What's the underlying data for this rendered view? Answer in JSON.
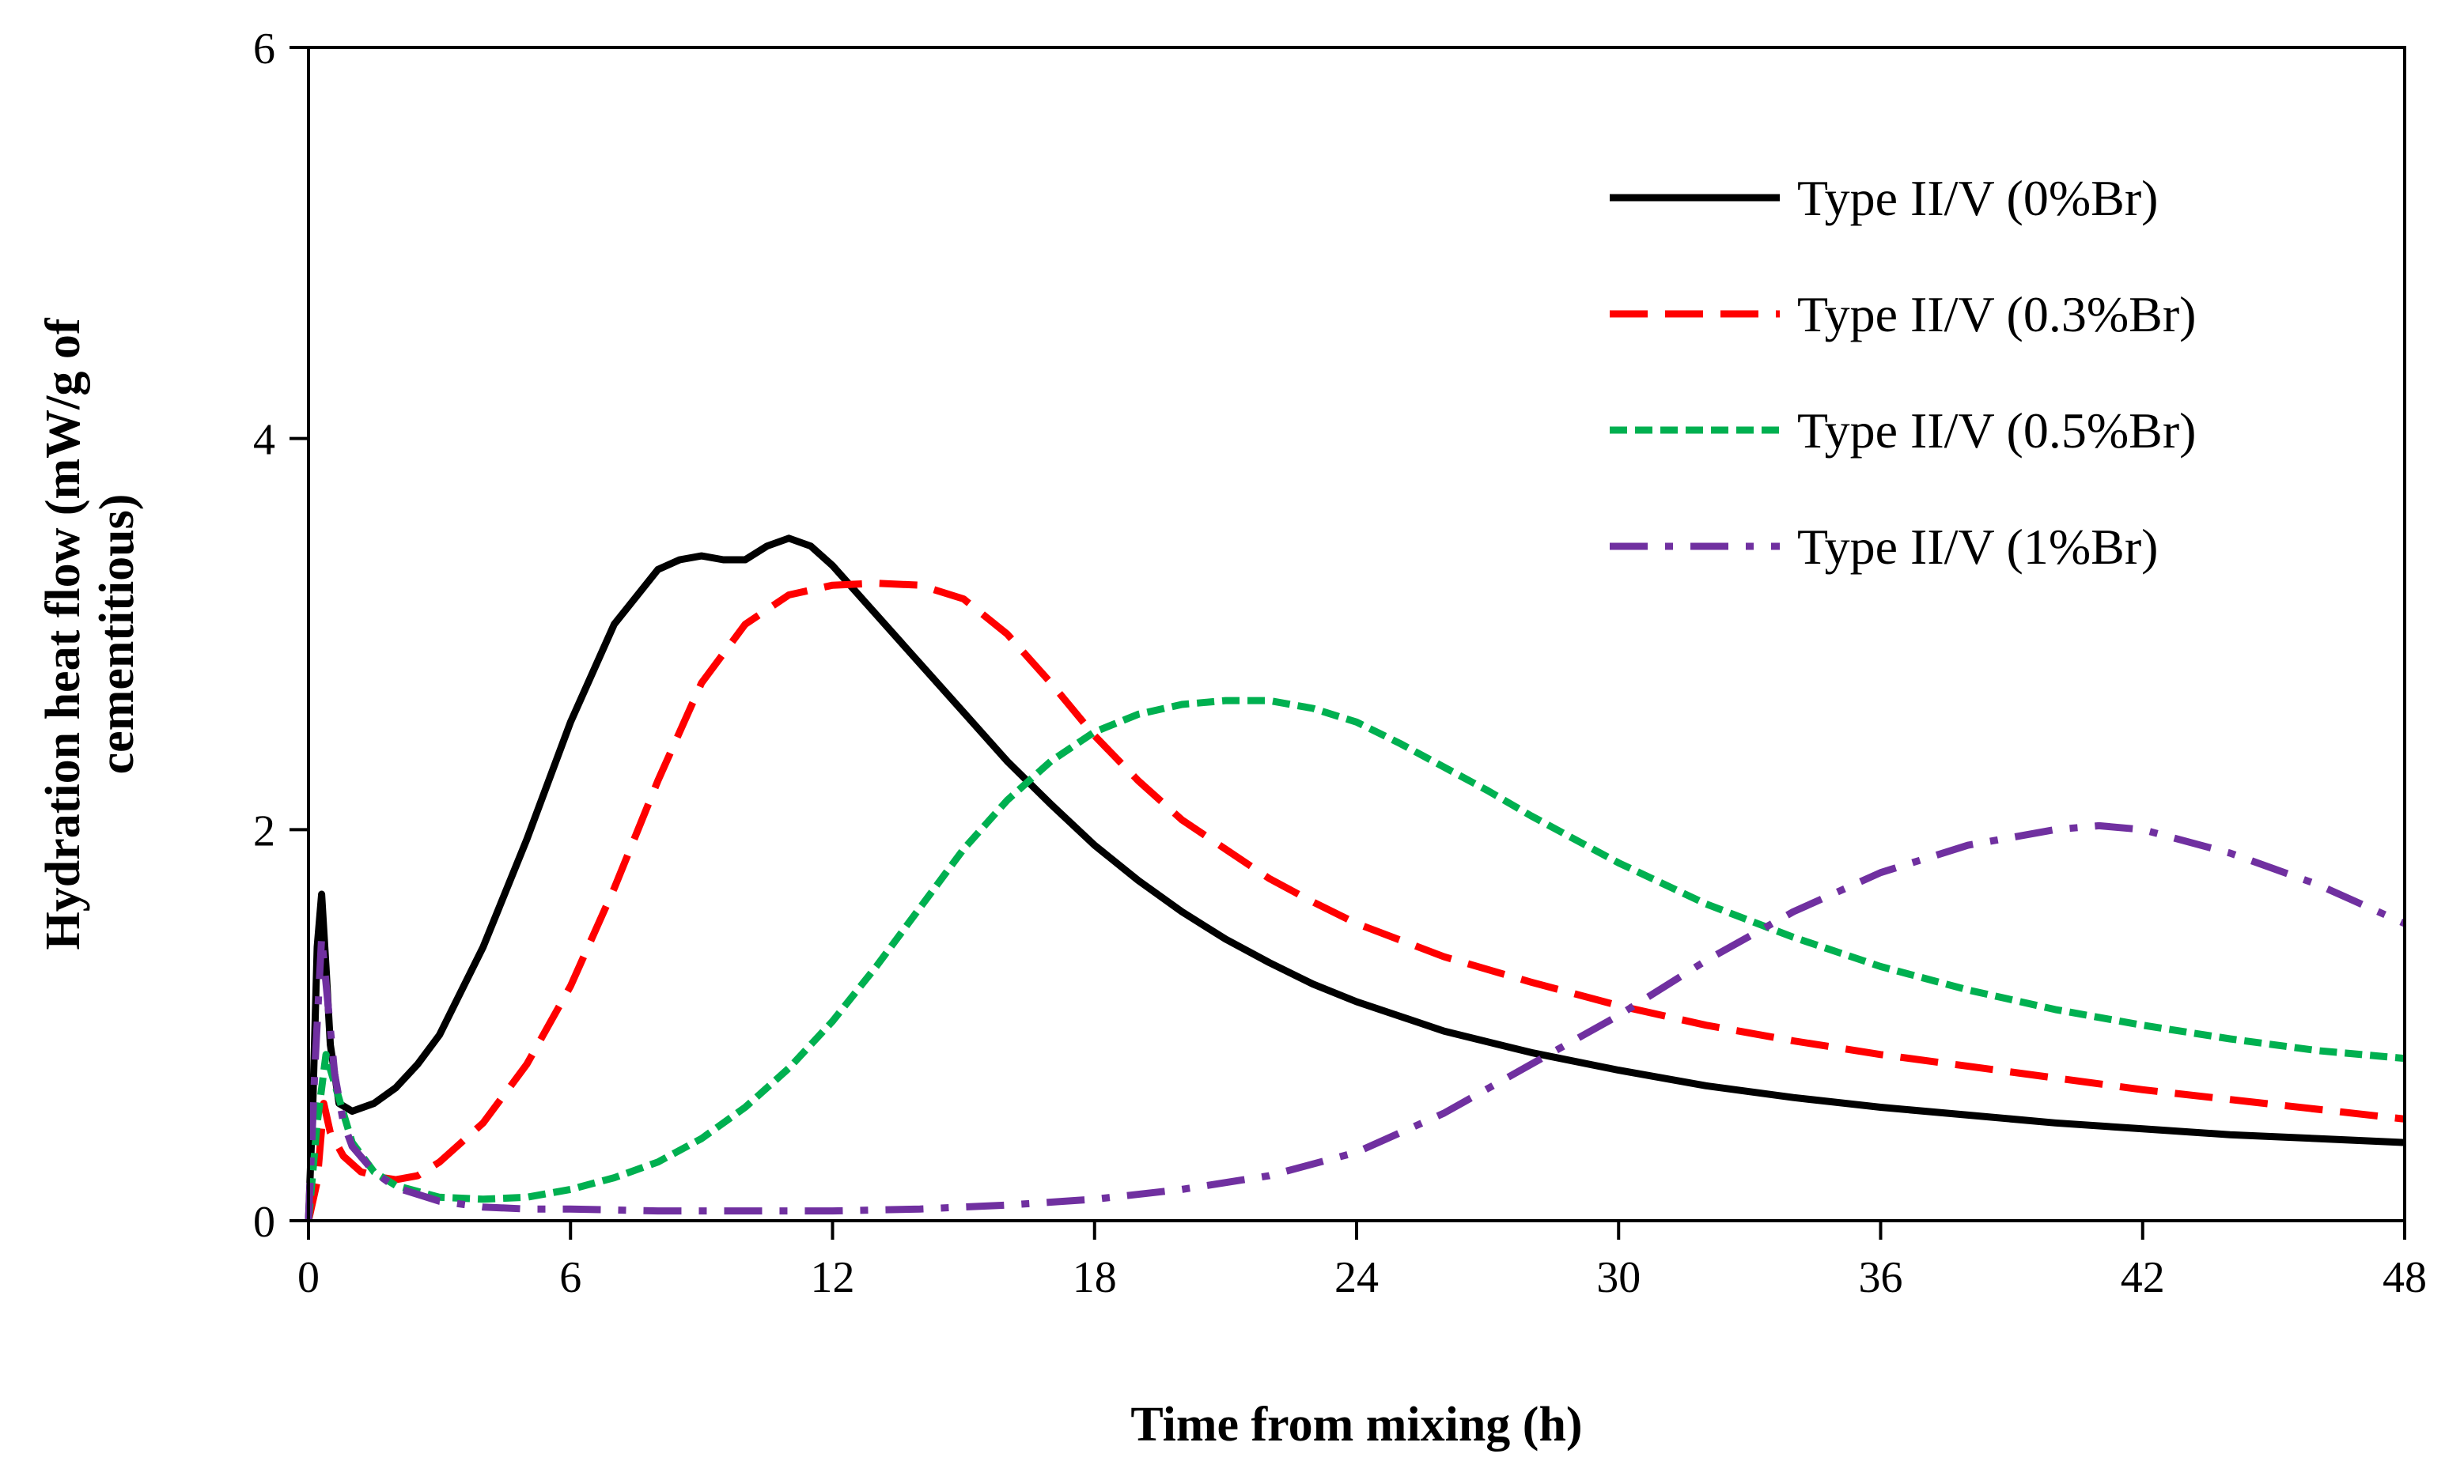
{
  "chart_data": {
    "type": "line",
    "title": "",
    "xlabel": "Time from mixing (h)",
    "ylabel_lines": [
      "Hydration heat flow (mW/g of",
      "cementitious)"
    ],
    "xlim": [
      0,
      48
    ],
    "ylim": [
      0,
      6
    ],
    "xticks": [
      0,
      6,
      12,
      18,
      24,
      30,
      36,
      42,
      48
    ],
    "yticks": [
      0,
      2,
      4,
      6
    ],
    "grid": false,
    "legend_position": "top-right",
    "series": [
      {
        "name": "Type II/V (0%Br)",
        "color": "#000000",
        "dash": "solid",
        "x": [
          0,
          0.1,
          0.2,
          0.3,
          0.4,
          0.5,
          0.7,
          1.0,
          1.5,
          2,
          2.5,
          3,
          4,
          5,
          6,
          7,
          8,
          8.5,
          9,
          9.5,
          10,
          10.5,
          11,
          11.5,
          12,
          13,
          14,
          15,
          16,
          17,
          18,
          19,
          20,
          21,
          22,
          23,
          24,
          26,
          28,
          30,
          32,
          34,
          36,
          38,
          40,
          42,
          44,
          46,
          48
        ],
        "y": [
          0,
          0.6,
          1.4,
          1.67,
          1.3,
          0.9,
          0.6,
          0.56,
          0.6,
          0.68,
          0.8,
          0.95,
          1.4,
          1.95,
          2.55,
          3.05,
          3.33,
          3.38,
          3.4,
          3.38,
          3.38,
          3.45,
          3.49,
          3.45,
          3.35,
          3.1,
          2.85,
          2.6,
          2.35,
          2.13,
          1.92,
          1.74,
          1.58,
          1.44,
          1.32,
          1.21,
          1.12,
          0.97,
          0.86,
          0.77,
          0.69,
          0.63,
          0.58,
          0.54,
          0.5,
          0.47,
          0.44,
          0.42,
          0.4
        ]
      },
      {
        "name": "Type II/V (0.3%Br)",
        "color": "#ff0000",
        "dash": "dashed",
        "x": [
          0,
          0.2,
          0.35,
          0.5,
          0.8,
          1.2,
          1.7,
          2,
          2.5,
          3,
          4,
          5,
          6,
          7,
          8,
          9,
          10,
          11,
          12,
          13,
          14,
          15,
          16,
          17,
          18,
          19,
          20,
          21,
          22,
          23,
          24,
          26,
          28,
          30,
          32,
          34,
          36,
          38,
          40,
          42,
          44,
          46,
          48
        ],
        "y": [
          0,
          0.2,
          0.6,
          0.45,
          0.33,
          0.25,
          0.22,
          0.21,
          0.23,
          0.3,
          0.5,
          0.8,
          1.2,
          1.7,
          2.25,
          2.75,
          3.05,
          3.2,
          3.25,
          3.26,
          3.25,
          3.18,
          3.0,
          2.75,
          2.48,
          2.25,
          2.05,
          1.9,
          1.75,
          1.63,
          1.52,
          1.35,
          1.22,
          1.1,
          1.0,
          0.92,
          0.85,
          0.79,
          0.73,
          0.67,
          0.62,
          0.57,
          0.52
        ]
      },
      {
        "name": "Type II/V (0.5%Br)",
        "color": "#00b050",
        "dash": "dotted",
        "x": [
          0,
          0.2,
          0.4,
          0.6,
          1.0,
          1.5,
          2,
          3,
          4,
          5,
          6,
          7,
          8,
          9,
          10,
          11,
          12,
          13,
          14,
          15,
          16,
          17,
          18,
          19,
          20,
          21,
          22,
          23,
          24,
          25,
          26,
          27,
          28,
          29,
          30,
          32,
          34,
          36,
          38,
          40,
          42,
          44,
          46,
          48
        ],
        "y": [
          0,
          0.5,
          0.85,
          0.7,
          0.4,
          0.25,
          0.18,
          0.12,
          0.11,
          0.12,
          0.16,
          0.22,
          0.3,
          0.42,
          0.58,
          0.78,
          1.02,
          1.3,
          1.6,
          1.9,
          2.15,
          2.35,
          2.5,
          2.59,
          2.64,
          2.66,
          2.66,
          2.62,
          2.55,
          2.44,
          2.32,
          2.2,
          2.07,
          1.95,
          1.83,
          1.62,
          1.45,
          1.3,
          1.18,
          1.08,
          1.0,
          0.93,
          0.87,
          0.83
        ]
      },
      {
        "name": "Type II/V (1%Br)",
        "color": "#7030a0",
        "dash": "dashdot",
        "x": [
          0,
          0.15,
          0.3,
          0.45,
          0.6,
          0.8,
          1.0,
          1.5,
          2,
          3,
          4,
          5,
          6,
          8,
          10,
          12,
          14,
          16,
          18,
          20,
          22,
          24,
          26,
          28,
          30,
          32,
          34,
          36,
          38,
          40,
          41,
          42,
          44,
          46,
          48
        ],
        "y": [
          0,
          0.8,
          1.45,
          1.1,
          0.75,
          0.5,
          0.38,
          0.25,
          0.17,
          0.1,
          0.07,
          0.06,
          0.06,
          0.05,
          0.05,
          0.05,
          0.06,
          0.08,
          0.11,
          0.16,
          0.23,
          0.35,
          0.55,
          0.8,
          1.05,
          1.33,
          1.58,
          1.78,
          1.92,
          2.0,
          2.02,
          2.0,
          1.88,
          1.72,
          1.52
        ]
      }
    ]
  }
}
